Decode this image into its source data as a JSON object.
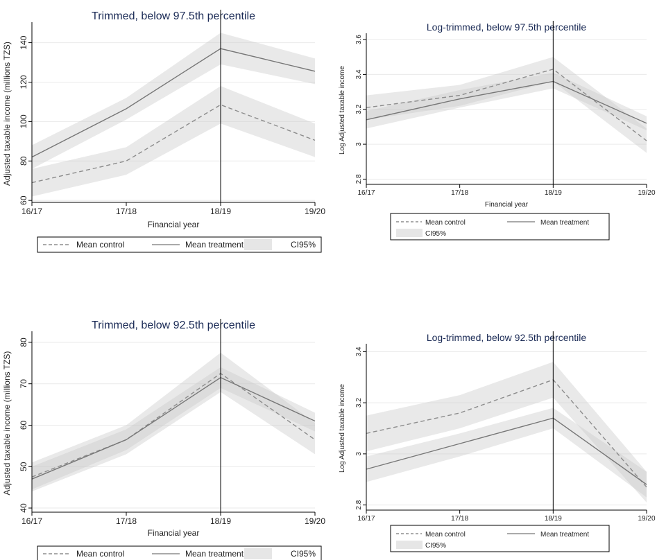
{
  "chart_data": [
    {
      "type": "line",
      "title": "Trimmed, below 97.5th percentile",
      "xlabel": "Financial year",
      "ylabel": "Adjusted taxable income (millions TZS)",
      "categories": [
        "16/17",
        "17/18",
        "18/19",
        "19/20"
      ],
      "yticks": [
        "60",
        "80",
        "100",
        "120",
        "140"
      ],
      "ylim": [
        59,
        149
      ],
      "reference_line_at": "18/19",
      "grid": true,
      "series": [
        {
          "name": "Mean control",
          "style": "dashed",
          "values": [
            69,
            80,
            108.5,
            90.5
          ],
          "ci_low": [
            62,
            73,
            99,
            82
          ],
          "ci_high": [
            76,
            87,
            118,
            99
          ]
        },
        {
          "name": "Mean treatment",
          "style": "solid",
          "values": [
            82,
            106.5,
            137,
            125.5
          ],
          "ci_low": [
            76,
            101,
            129,
            119
          ],
          "ci_high": [
            88,
            112,
            145,
            132
          ]
        }
      ],
      "legend": {
        "items": [
          "Mean control",
          "Mean treatment",
          "CI95%"
        ],
        "placement": "bottom"
      }
    },
    {
      "type": "line",
      "title": "Log-trimmed, below 97.5th percentile",
      "xlabel": "Financial year",
      "ylabel": "Log Adjusted taxable income",
      "categories": [
        "16/17",
        "17/18",
        "18/19",
        "19/20"
      ],
      "yticks": [
        "2.8",
        "3",
        "3.2",
        "3.4",
        "3.6"
      ],
      "ylim": [
        2.77,
        3.62
      ],
      "reference_line_at": "18/19",
      "grid": true,
      "series": [
        {
          "name": "Mean control",
          "style": "dashed",
          "values": [
            3.21,
            3.28,
            3.43,
            3.02
          ],
          "ci_low": [
            3.14,
            3.22,
            3.36,
            2.95
          ],
          "ci_high": [
            3.28,
            3.34,
            3.5,
            3.09
          ]
        },
        {
          "name": "Mean treatment",
          "style": "solid",
          "values": [
            3.14,
            3.26,
            3.36,
            3.12
          ],
          "ci_low": [
            3.09,
            3.21,
            3.32,
            3.08
          ],
          "ci_high": [
            3.19,
            3.31,
            3.41,
            3.16
          ]
        }
      ],
      "legend": {
        "items": [
          "Mean control",
          "Mean treatment",
          "CI95%"
        ],
        "placement": "bottom"
      }
    },
    {
      "type": "line",
      "title": "Trimmed, below 92.5th percentile",
      "xlabel": "Financial year",
      "ylabel": "Adjusted taxable income (millions TZS)",
      "categories": [
        "16/17",
        "17/18",
        "18/19",
        "19/20"
      ],
      "yticks": [
        "40",
        "50",
        "60",
        "70",
        "80"
      ],
      "ylim": [
        39,
        82
      ],
      "reference_line_at": "18/19",
      "grid": true,
      "series": [
        {
          "name": "Mean control",
          "style": "dashed",
          "values": [
            47.5,
            56.5,
            72.5,
            56.5
          ],
          "ci_low": [
            44,
            53,
            68,
            53
          ],
          "ci_high": [
            51,
            60,
            77.5,
            60.5
          ]
        },
        {
          "name": "Mean treatment",
          "style": "solid",
          "values": [
            47,
            56.5,
            71.5,
            61
          ],
          "ci_low": [
            44.5,
            54,
            69,
            58.5
          ],
          "ci_high": [
            50,
            59,
            74,
            63
          ]
        }
      ],
      "legend": {
        "items": [
          "Mean control",
          "Mean treatment",
          "CI95%"
        ],
        "placement": "bottom"
      }
    },
    {
      "type": "line",
      "title": "Log-trimmed, below 92.5th percentile",
      "xlabel": "Financial year",
      "ylabel": "Log Adjusted taxable income",
      "categories": [
        "16/17",
        "17/18",
        "18/19",
        "19/20"
      ],
      "yticks": [
        "2.8",
        "3",
        "3.2",
        "3.4"
      ],
      "ylim": [
        2.78,
        3.42
      ],
      "reference_line_at": "18/19",
      "grid": true,
      "series": [
        {
          "name": "Mean control",
          "style": "dashed",
          "values": [
            3.08,
            3.16,
            3.29,
            2.87
          ],
          "ci_low": [
            3.01,
            3.1,
            3.22,
            2.81
          ],
          "ci_high": [
            3.15,
            3.23,
            3.36,
            2.93
          ]
        },
        {
          "name": "Mean treatment",
          "style": "solid",
          "values": [
            2.94,
            3.04,
            3.14,
            2.88
          ],
          "ci_low": [
            2.89,
            2.99,
            3.1,
            2.83
          ],
          "ci_high": [
            2.99,
            3.08,
            3.18,
            2.93
          ]
        }
      ],
      "legend": {
        "items": [
          "Mean control",
          "Mean treatment",
          "CI95%"
        ],
        "placement": "bottom"
      }
    }
  ]
}
